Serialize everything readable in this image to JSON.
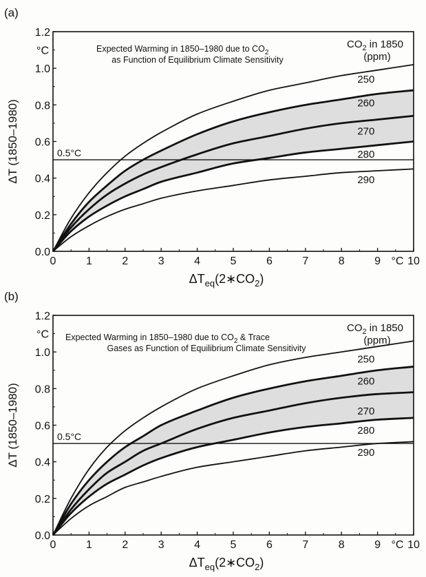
{
  "chart_data": [
    {
      "panel_label": "(a)",
      "type": "line",
      "title_lines": [
        "Expected Warming in 1850–1980 due to CO",
        "as Function of Equilibrium Climate Sensitivity"
      ],
      "title_subscript": "2",
      "ylabel": "ΔT (1850–1980)",
      "yunit": "°C",
      "xlabel_main": "ΔT",
      "xlabel_sub": "eq",
      "xlabel_rest": "(2∗CO",
      "xlabel_sub2": "2",
      "xlabel_close": ")",
      "xunit": "°C",
      "xlim": [
        0,
        10
      ],
      "ylim": [
        0,
        1.2
      ],
      "xticks": [
        "0",
        "1",
        "2",
        "3",
        "4",
        "5",
        "6",
        "7",
        "8",
        "9",
        "10"
      ],
      "yticks": [
        "0.0",
        "0.2",
        "0.4",
        "0.6",
        "0.8",
        "1.0",
        "1.2"
      ],
      "legend_title": "CO",
      "legend_title_sub": "2",
      "legend_title_rest": " in 1850",
      "legend_unit": "(ppm)",
      "reference_line": {
        "label": "0.5°C",
        "y": 0.5
      },
      "shaded_band": {
        "between": [
          "260",
          "280"
        ]
      },
      "x": [
        0,
        0.5,
        1,
        1.5,
        2,
        2.5,
        3,
        4,
        5,
        6,
        7,
        8,
        9,
        10
      ],
      "series": [
        {
          "name": "250",
          "values": [
            0,
            0.18,
            0.32,
            0.43,
            0.52,
            0.59,
            0.65,
            0.75,
            0.82,
            0.88,
            0.92,
            0.96,
            0.99,
            1.02
          ]
        },
        {
          "name": "260",
          "values": [
            0,
            0.15,
            0.27,
            0.36,
            0.44,
            0.5,
            0.55,
            0.64,
            0.71,
            0.76,
            0.8,
            0.83,
            0.86,
            0.88
          ]
        },
        {
          "name": "270",
          "values": [
            0,
            0.13,
            0.23,
            0.31,
            0.37,
            0.42,
            0.46,
            0.53,
            0.59,
            0.63,
            0.67,
            0.7,
            0.72,
            0.74
          ]
        },
        {
          "name": "280",
          "values": [
            0,
            0.11,
            0.19,
            0.25,
            0.3,
            0.34,
            0.38,
            0.43,
            0.48,
            0.51,
            0.54,
            0.56,
            0.58,
            0.6
          ]
        },
        {
          "name": "290",
          "values": [
            0,
            0.08,
            0.14,
            0.19,
            0.23,
            0.26,
            0.29,
            0.33,
            0.36,
            0.39,
            0.41,
            0.43,
            0.44,
            0.45
          ]
        }
      ]
    },
    {
      "panel_label": "(b)",
      "type": "line",
      "title_lines": [
        "Expected Warming in 1850–1980 due to CO",
        " & Trace",
        "Gases as Function of Equilibrium Climate Sensitivity"
      ],
      "title_subscript": "2",
      "ylabel": "ΔT (1850–1980)",
      "yunit": "°C",
      "xlabel_main": "ΔT",
      "xlabel_sub": "eq",
      "xlabel_rest": "(2∗CO",
      "xlabel_sub2": "2",
      "xlabel_close": ")",
      "xunit": "°C",
      "xlim": [
        0,
        10
      ],
      "ylim": [
        0,
        1.2
      ],
      "xticks": [
        "0",
        "1",
        "2",
        "3",
        "4",
        "5",
        "6",
        "7",
        "8",
        "9",
        "10"
      ],
      "yticks": [
        "0.0",
        "0.2",
        "0.4",
        "0.6",
        "0.8",
        "1.0",
        "1.2"
      ],
      "legend_title": "CO",
      "legend_title_sub": "2",
      "legend_title_rest": " in 1850",
      "legend_unit": "(ppm)",
      "reference_line": {
        "label": "0.5°C",
        "y": 0.5
      },
      "shaded_band": {
        "between": [
          "260",
          "280"
        ]
      },
      "x": [
        0,
        0.5,
        1,
        1.5,
        2,
        2.5,
        3,
        4,
        5,
        6,
        7,
        8,
        9,
        10
      ],
      "series": [
        {
          "name": "250",
          "values": [
            0,
            0.2,
            0.36,
            0.48,
            0.57,
            0.64,
            0.7,
            0.8,
            0.87,
            0.93,
            0.97,
            1.0,
            1.03,
            1.06
          ]
        },
        {
          "name": "260",
          "values": [
            0,
            0.17,
            0.3,
            0.4,
            0.48,
            0.54,
            0.6,
            0.68,
            0.75,
            0.8,
            0.84,
            0.87,
            0.9,
            0.92
          ]
        },
        {
          "name": "270",
          "values": [
            0,
            0.14,
            0.25,
            0.34,
            0.4,
            0.46,
            0.5,
            0.58,
            0.64,
            0.68,
            0.72,
            0.75,
            0.77,
            0.78
          ]
        },
        {
          "name": "280",
          "values": [
            0,
            0.12,
            0.21,
            0.28,
            0.33,
            0.38,
            0.42,
            0.48,
            0.52,
            0.56,
            0.59,
            0.61,
            0.63,
            0.64
          ]
        },
        {
          "name": "290",
          "values": [
            0,
            0.09,
            0.16,
            0.21,
            0.26,
            0.29,
            0.32,
            0.37,
            0.4,
            0.43,
            0.46,
            0.48,
            0.5,
            0.51
          ]
        }
      ]
    }
  ]
}
